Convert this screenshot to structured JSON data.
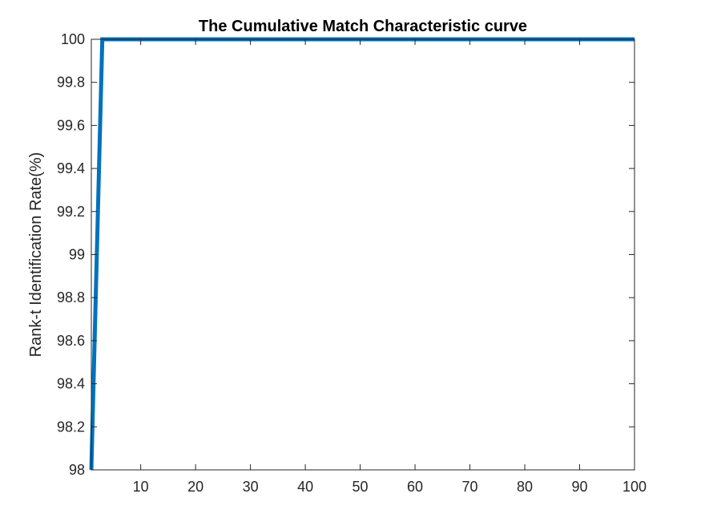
{
  "chart_data": {
    "type": "line",
    "title": "The Cumulative Match Characteristic curve",
    "xlabel": "",
    "ylabel": "Rank-t Identification Rate(%)",
    "xlim": [
      1,
      100
    ],
    "ylim": [
      98,
      100
    ],
    "xticks": [
      10,
      20,
      30,
      40,
      50,
      60,
      70,
      80,
      90,
      100
    ],
    "yticks": [
      98,
      98.2,
      98.4,
      98.6,
      98.8,
      99,
      99.2,
      99.4,
      99.6,
      99.8,
      100
    ],
    "ytick_labels": [
      "98",
      "98.2",
      "98.4",
      "98.6",
      "98.8",
      "99",
      "99.2",
      "99.4",
      "99.6",
      "99.8",
      "100"
    ],
    "grid": false,
    "series": [
      {
        "color": "#0072BD",
        "points": [
          [
            1,
            98
          ],
          [
            3,
            100
          ],
          [
            100,
            100
          ]
        ]
      }
    ]
  }
}
